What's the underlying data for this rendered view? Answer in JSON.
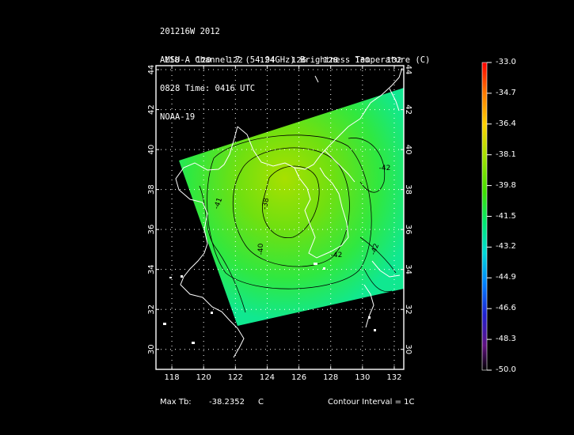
{
  "header": {
    "line1": "201216W 2012",
    "line2": "AMSU-A Channel 7 (54.94GHz) Brightness Temperature (C)",
    "line3": "0828 Time: 0416 UTC",
    "line4": "NOAA-19"
  },
  "map": {
    "lon_range": [
      117,
      132.6
    ],
    "lat_range": [
      29,
      44.2
    ],
    "lon_ticks": [
      "118",
      "120",
      "122",
      "124",
      "126",
      "128",
      "130",
      "132"
    ],
    "lat_ticks": [
      "30",
      "32",
      "34",
      "36",
      "38",
      "40",
      "42",
      "44"
    ],
    "contour_labels": [
      "-38",
      "-40",
      "-41",
      "-42",
      "-42",
      "-42"
    ],
    "frame_color": "#ffffff",
    "coast_color": "#ffffff",
    "contour_color": "#000000"
  },
  "colorbar": {
    "labels": [
      "-33.0",
      "-34.7",
      "-36.4",
      "-38.1",
      "-39.8",
      "-41.5",
      "-43.2",
      "-44.9",
      "-46.6",
      "-48.3",
      "-50.0"
    ],
    "colors": [
      "#ff0000",
      "#ff7a00",
      "#ffd000",
      "#a8e000",
      "#40e000",
      "#00e870",
      "#00d8d8",
      "#0080ff",
      "#2020d0",
      "#601080",
      "#000000"
    ]
  },
  "footer": {
    "max_tb_label": "Max Tb:",
    "max_tb_value": "-38.2352",
    "max_tb_unit": "C",
    "contour_interval": "Contour Interval = 1C"
  }
}
